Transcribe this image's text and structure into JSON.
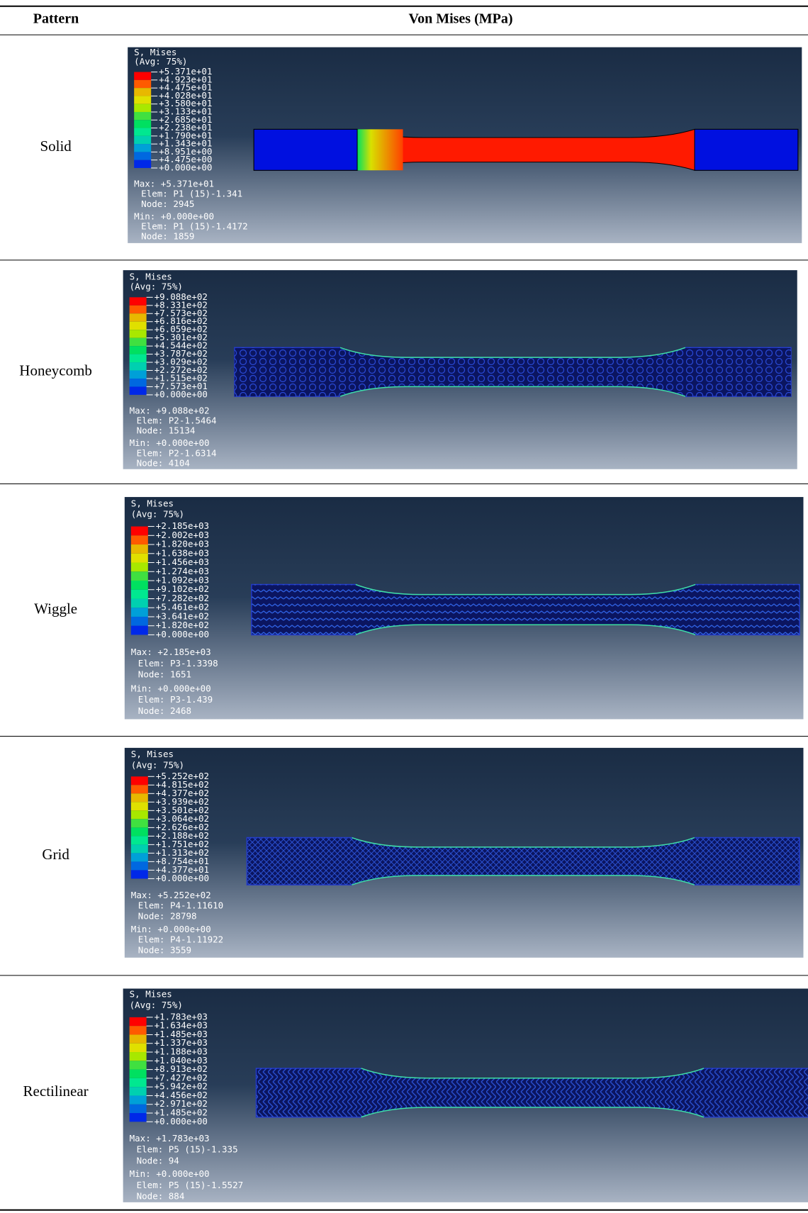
{
  "header": {
    "pattern": "Pattern",
    "von_mises": "Von Mises (MPa)"
  },
  "rows": [
    {
      "pattern": "Solid",
      "title": "S, Mises",
      "avg": "(Avg: 75%)",
      "legend": [
        "+5.371e+01",
        "+4.923e+01",
        "+4.475e+01",
        "+4.028e+01",
        "+3.580e+01",
        "+3.133e+01",
        "+2.685e+01",
        "+2.238e+01",
        "+1.790e+01",
        "+1.343e+01",
        "+8.951e+00",
        "+4.475e+00",
        "+0.000e+00"
      ],
      "max": "Max: +5.371e+01",
      "max_elem": "Elem: P1 (15)-1.341",
      "max_node": "Node: 2945",
      "min": "Min: +0.000e+00",
      "min_elem": "Elem: P1 (15)-1.4172",
      "min_node": "Node: 1859"
    },
    {
      "pattern": "Honeycomb",
      "title": "S, Mises",
      "avg": "(Avg: 75%)",
      "legend": [
        "+9.088e+02",
        "+8.331e+02",
        "+7.573e+02",
        "+6.816e+02",
        "+6.059e+02",
        "+5.301e+02",
        "+4.544e+02",
        "+3.787e+02",
        "+3.029e+02",
        "+2.272e+02",
        "+1.515e+02",
        "+7.573e+01",
        "+0.000e+00"
      ],
      "max": "Max: +9.088e+02",
      "max_elem": "Elem: P2-1.5464",
      "max_node": "Node: 15134",
      "min": "Min: +0.000e+00",
      "min_elem": "Elem: P2-1.6314",
      "min_node": "Node: 4104"
    },
    {
      "pattern": "Wiggle",
      "title": "S, Mises",
      "avg": "(Avg: 75%)",
      "legend": [
        "+2.185e+03",
        "+2.002e+03",
        "+1.820e+03",
        "+1.638e+03",
        "+1.456e+03",
        "+1.274e+03",
        "+1.092e+03",
        "+9.102e+02",
        "+7.282e+02",
        "+5.461e+02",
        "+3.641e+02",
        "+1.820e+02",
        "+0.000e+00"
      ],
      "max": "Max: +2.185e+03",
      "max_elem": "Elem: P3-1.3398",
      "max_node": "Node: 1651",
      "min": "Min: +0.000e+00",
      "min_elem": "Elem: P3-1.439",
      "min_node": "Node: 2468"
    },
    {
      "pattern": "Grid",
      "title": "S, Mises",
      "avg": "(Avg: 75%)",
      "legend": [
        "+5.252e+02",
        "+4.815e+02",
        "+4.377e+02",
        "+3.939e+02",
        "+3.501e+02",
        "+3.064e+02",
        "+2.626e+02",
        "+2.188e+02",
        "+1.751e+02",
        "+1.313e+02",
        "+8.754e+01",
        "+4.377e+01",
        "+0.000e+00"
      ],
      "max": "Max: +5.252e+02",
      "max_elem": "Elem: P4-1.11610",
      "max_node": "Node: 28798",
      "min": "Min: +0.000e+00",
      "min_elem": "Elem: P4-1.11922",
      "min_node": "Node: 3559"
    },
    {
      "pattern": "Rectilinear",
      "title": "S, Mises",
      "avg": "(Avg: 75%)",
      "legend": [
        "+1.783e+03",
        "+1.634e+03",
        "+1.485e+03",
        "+1.337e+03",
        "+1.188e+03",
        "+1.040e+03",
        "+8.913e+02",
        "+7.427e+02",
        "+5.942e+02",
        "+4.456e+02",
        "+2.971e+02",
        "+1.485e+02",
        "+0.000e+00"
      ],
      "max": "Max: +1.783e+03",
      "max_elem": "Elem: P5 (15)-1.335",
      "max_node": "Node: 94",
      "min": "Min: +0.000e+00",
      "min_elem": "Elem: P5 (15)-1.5527",
      "min_node": "Node: 884"
    }
  ]
}
